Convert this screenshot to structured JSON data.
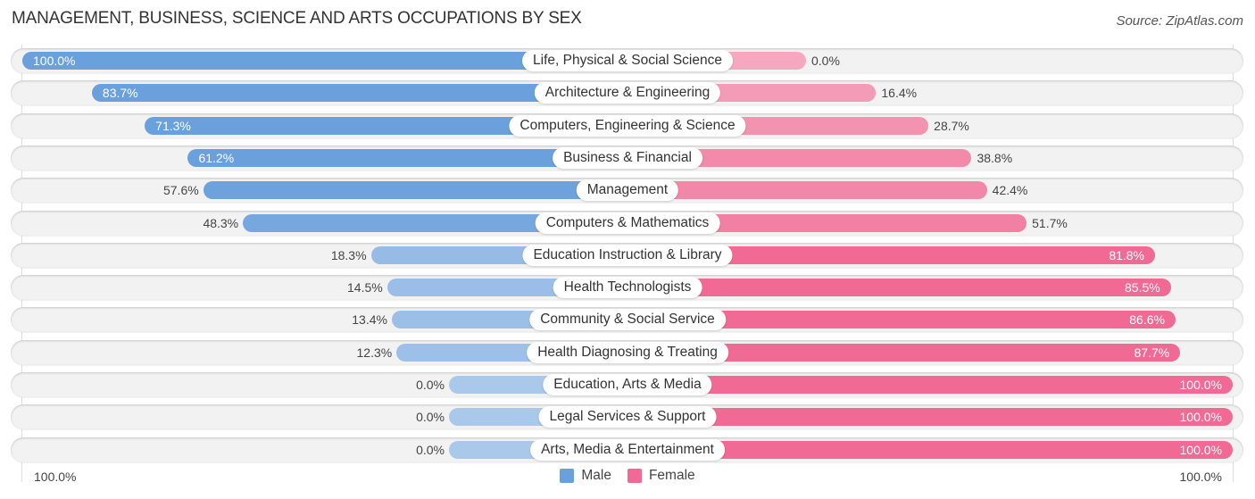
{
  "chart_data": {
    "type": "bar",
    "orientation": "horizontal-diverging",
    "title": "MANAGEMENT, BUSINESS, SCIENCE AND ARTS OCCUPATIONS BY SEX",
    "source": "Source: ZipAtlas.com",
    "categories": [
      "Life, Physical & Social Science",
      "Architecture & Engineering",
      "Computers, Engineering & Science",
      "Business & Financial",
      "Management",
      "Computers & Mathematics",
      "Education Instruction & Library",
      "Health Technologists",
      "Community & Social Service",
      "Health Diagnosing & Treating",
      "Education, Arts & Media",
      "Legal Services & Support",
      "Arts, Media & Entertainment"
    ],
    "series": [
      {
        "name": "Male",
        "color": "#6aa0dc",
        "values": [
          100.0,
          83.7,
          71.3,
          61.2,
          57.6,
          48.3,
          18.3,
          14.5,
          13.4,
          12.3,
          0.0,
          0.0,
          0.0
        ]
      },
      {
        "name": "Female",
        "color": "#f06a95",
        "values": [
          0.0,
          16.4,
          28.7,
          38.8,
          42.4,
          51.7,
          81.8,
          85.5,
          86.6,
          87.7,
          100.0,
          100.0,
          100.0
        ]
      }
    ],
    "value_labels_male": [
      "100.0%",
      "83.7%",
      "71.3%",
      "61.2%",
      "57.6%",
      "48.3%",
      "18.3%",
      "14.5%",
      "13.4%",
      "12.3%",
      "0.0%",
      "0.0%",
      "0.0%"
    ],
    "value_labels_female": [
      "0.0%",
      "16.4%",
      "28.7%",
      "38.8%",
      "42.4%",
      "51.7%",
      "81.8%",
      "85.5%",
      "86.6%",
      "87.7%",
      "100.0%",
      "100.0%",
      "100.0%"
    ],
    "axis_left_label": "100.0%",
    "axis_right_label": "100.0%",
    "xlim": [
      -100,
      100
    ],
    "legend": [
      "Male",
      "Female"
    ],
    "legend_position": "bottom-center",
    "grid": false
  },
  "colors": {
    "male_strong": "#6aa0dc",
    "male_light": "#a9c8ea",
    "female_strong": "#f06a95",
    "female_light": "#f5a8c0"
  }
}
